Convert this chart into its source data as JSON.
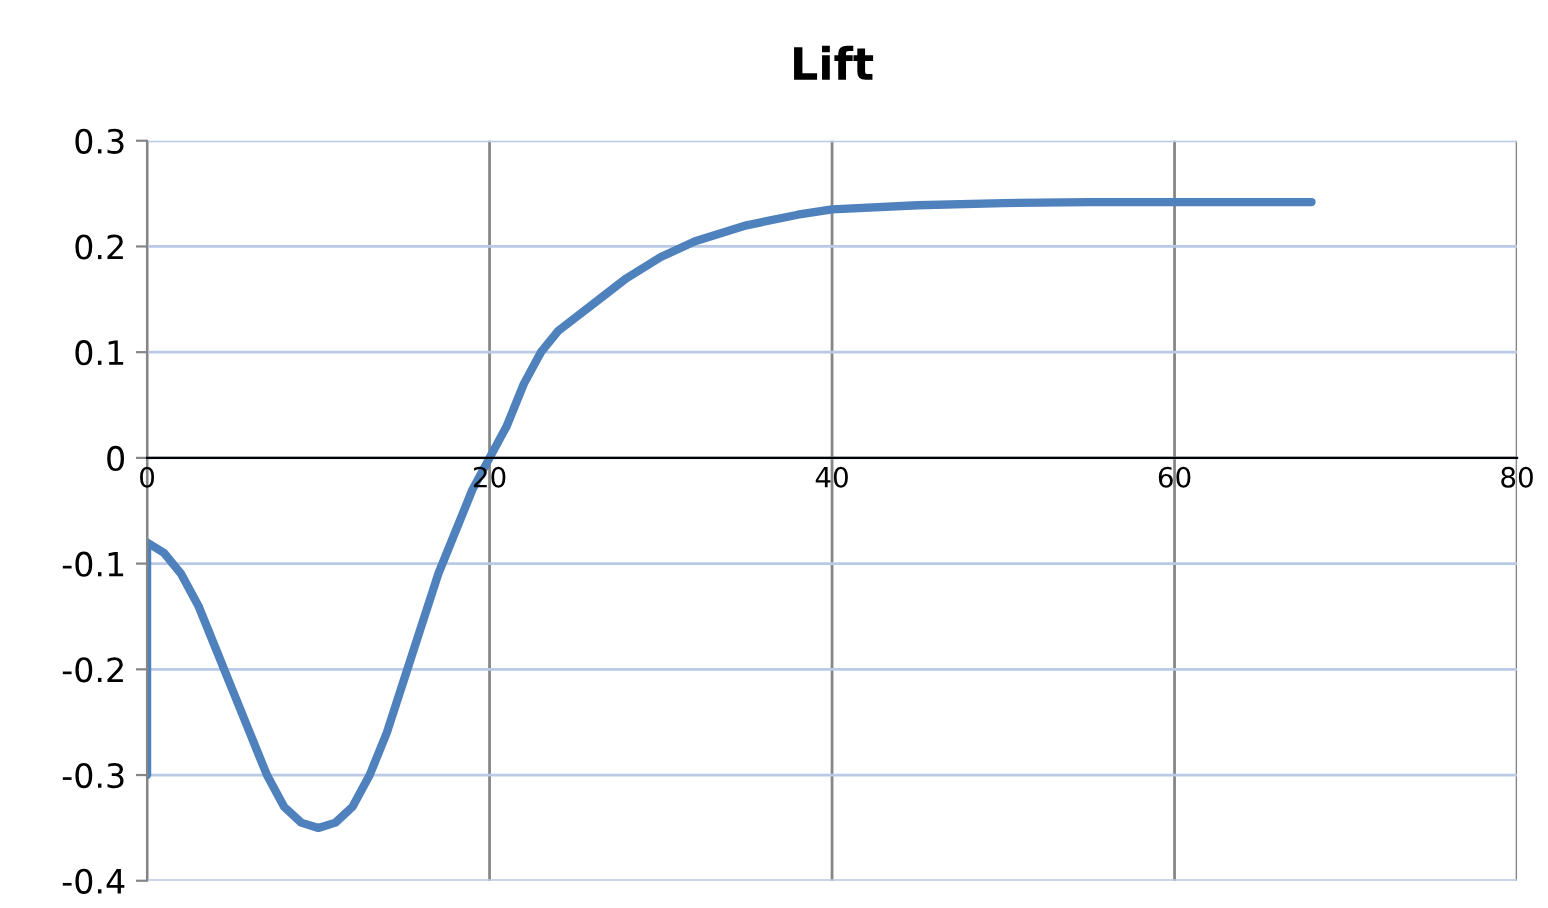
{
  "chart_data": {
    "type": "line",
    "title": "Lift",
    "x": [
      0,
      0,
      1,
      2,
      3,
      4,
      5,
      6,
      7,
      8,
      9,
      10,
      11,
      12,
      13,
      14,
      15,
      16,
      17,
      18,
      19,
      20,
      21,
      22,
      23,
      24,
      26,
      28,
      30,
      32,
      35,
      38,
      40,
      45,
      50,
      55,
      60,
      68
    ],
    "series": [
      {
        "color": "#4f81bd",
        "values": [
          -0.3,
          -0.08,
          -0.09,
          -0.11,
          -0.14,
          -0.18,
          -0.22,
          -0.26,
          -0.3,
          -0.33,
          -0.345,
          -0.35,
          -0.345,
          -0.33,
          -0.3,
          -0.26,
          -0.21,
          -0.16,
          -0.11,
          -0.07,
          -0.03,
          0.0,
          0.03,
          0.07,
          0.1,
          0.12,
          0.145,
          0.17,
          0.19,
          0.205,
          0.22,
          0.23,
          0.235,
          0.239,
          0.241,
          0.242,
          0.242,
          0.242
        ]
      }
    ],
    "xlim": [
      0,
      80
    ],
    "xticks": [
      0,
      20,
      40,
      60,
      80
    ],
    "ylim": [
      -0.4,
      0.3
    ],
    "yticks": [
      -0.4,
      -0.3,
      -0.2,
      -0.1,
      0,
      0.1,
      0.2,
      0.3
    ],
    "grid": true,
    "marker": "none",
    "line_style": "solid",
    "legend": false
  }
}
